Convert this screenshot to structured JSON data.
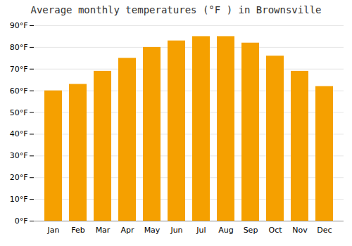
{
  "chart_data": {
    "type": "bar",
    "title": "Average monthly temperatures (°F ) in Brownsville",
    "categories": [
      "Jan",
      "Feb",
      "Mar",
      "Apr",
      "May",
      "Jun",
      "Jul",
      "Aug",
      "Sep",
      "Oct",
      "Nov",
      "Dec"
    ],
    "values": [
      60,
      63,
      69,
      75,
      80,
      83,
      85,
      85,
      82,
      76,
      69,
      62
    ],
    "color": "#F5A000",
    "ylim": [
      0,
      90
    ],
    "yticks": [
      {
        "value": 0,
        "label": "0°F"
      },
      {
        "value": 10,
        "label": "10°F"
      },
      {
        "value": 20,
        "label": "20°F"
      },
      {
        "value": 30,
        "label": "30°F"
      },
      {
        "value": 40,
        "label": "40°F"
      },
      {
        "value": 50,
        "label": "50°F"
      },
      {
        "value": 60,
        "label": "60°F"
      },
      {
        "value": 70,
        "label": "70°F"
      },
      {
        "value": 80,
        "label": "80°F"
      },
      {
        "value": 90,
        "label": "90°F"
      }
    ],
    "grid": true
  }
}
